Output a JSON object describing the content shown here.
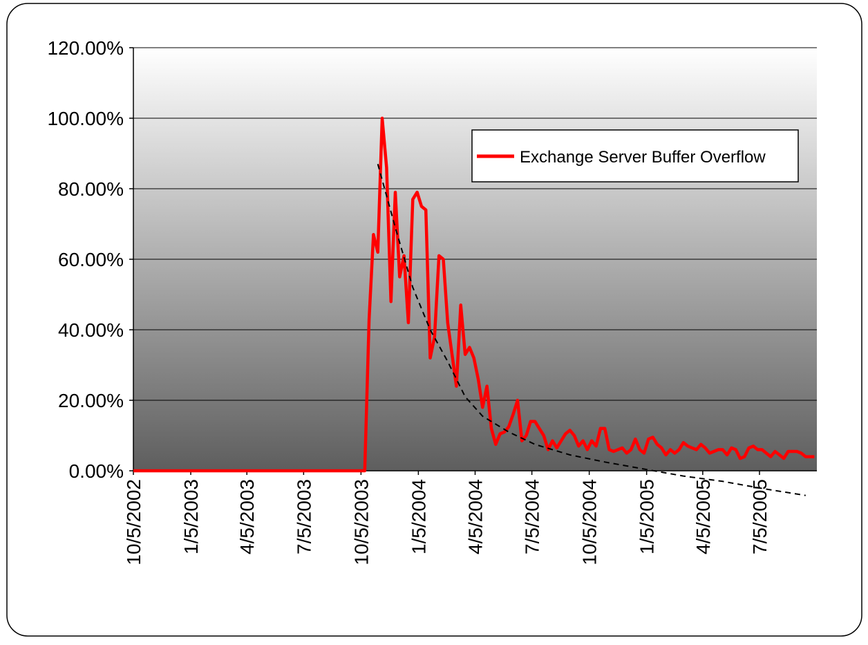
{
  "chart_data": {
    "type": "line",
    "x": [
      "2002-10-05",
      "2003-10-11",
      "2003-10-18",
      "2003-10-25",
      "2003-11-01",
      "2003-11-08",
      "2003-11-15",
      "2003-11-22",
      "2003-11-29",
      "2003-12-06",
      "2003-12-13",
      "2003-12-20",
      "2003-12-27",
      "2004-01-03",
      "2004-01-10",
      "2004-01-17",
      "2004-01-24",
      "2004-01-31",
      "2004-02-07",
      "2004-02-14",
      "2004-02-21",
      "2004-02-28",
      "2004-03-06",
      "2004-03-13",
      "2004-03-20",
      "2004-03-27",
      "2004-04-03",
      "2004-04-10",
      "2004-04-17",
      "2004-04-24",
      "2004-05-01",
      "2004-05-08",
      "2004-05-15",
      "2004-05-22",
      "2004-05-29",
      "2004-06-05",
      "2004-06-12",
      "2004-06-19",
      "2004-06-26",
      "2004-07-03",
      "2004-07-10",
      "2004-07-17",
      "2004-07-24",
      "2004-07-31",
      "2004-08-07",
      "2004-08-14",
      "2004-08-21",
      "2004-08-28",
      "2004-09-04",
      "2004-09-11",
      "2004-09-18",
      "2004-09-25",
      "2004-10-02",
      "2004-10-09",
      "2004-10-16",
      "2004-10-23",
      "2004-10-30",
      "2004-11-06",
      "2004-11-13",
      "2004-11-20",
      "2004-11-27",
      "2004-12-04",
      "2004-12-11",
      "2004-12-18",
      "2004-12-25",
      "2005-01-01",
      "2005-01-08",
      "2005-01-15",
      "2005-01-22",
      "2005-01-29",
      "2005-02-05",
      "2005-02-12",
      "2005-02-19",
      "2005-02-26",
      "2005-03-05",
      "2005-03-12",
      "2005-03-19",
      "2005-03-26",
      "2005-04-02",
      "2005-04-09",
      "2005-04-16",
      "2005-04-23",
      "2005-04-30",
      "2005-05-07",
      "2005-05-14",
      "2005-05-21",
      "2005-05-28",
      "2005-06-04",
      "2005-06-11",
      "2005-06-18",
      "2005-06-25",
      "2005-07-02",
      "2005-07-09",
      "2005-07-16",
      "2005-07-23",
      "2005-07-30",
      "2005-08-06",
      "2005-08-13",
      "2005-08-20",
      "2005-08-27",
      "2005-09-03",
      "2005-09-10",
      "2005-09-17",
      "2005-09-24",
      "2005-10-01"
    ],
    "series": [
      {
        "name": "Exchange Server Buffer Overflow",
        "color": "#ff0000",
        "values": [
          0,
          0,
          43,
          67,
          62,
          100,
          86,
          48,
          79,
          55,
          61,
          42,
          77,
          79,
          75,
          74,
          32,
          38,
          61,
          60,
          42,
          33,
          24,
          47,
          33,
          35,
          32,
          26,
          18,
          24,
          12,
          7.5,
          10.5,
          11,
          12.5,
          16,
          20,
          8.5,
          10,
          14,
          14,
          12,
          10,
          6,
          8.5,
          6.5,
          8.5,
          10.5,
          11.5,
          10,
          7,
          8.5,
          6,
          8.5,
          7,
          12,
          12,
          6,
          5.5,
          6,
          6.5,
          5,
          6,
          9,
          6,
          5,
          9,
          9.5,
          7.5,
          6.5,
          4.5,
          6,
          5,
          6,
          8,
          7,
          6.5,
          6,
          7.5,
          6.5,
          5,
          5.5,
          6,
          6,
          4.5,
          6.5,
          6,
          3.5,
          4,
          6.5,
          7,
          6,
          6,
          5,
          4,
          5.5,
          4.5,
          3.5,
          5.5,
          5.5,
          5.5,
          5,
          4,
          4,
          4
        ]
      }
    ],
    "trendline": {
      "color": "#000000",
      "x": [
        "2003-11-01",
        "2003-11-29",
        "2003-12-27",
        "2004-01-24",
        "2004-02-21",
        "2004-03-20",
        "2004-04-17",
        "2004-05-29",
        "2004-07-10",
        "2004-09-04",
        "2004-10-30",
        "2005-01-01",
        "2005-03-05",
        "2005-05-07",
        "2005-07-09",
        "2005-09-17"
      ],
      "values": [
        87,
        69,
        52,
        40,
        31,
        21,
        15.5,
        11,
        7.5,
        4.5,
        2.5,
        0.5,
        -1.5,
        -3,
        -5,
        -7
      ]
    },
    "xlim": [
      "2002-10-05",
      "2005-10-05"
    ],
    "xticks": [
      {
        "value": "2002-10-05",
        "label": "10/5/2002"
      },
      {
        "value": "2003-01-05",
        "label": "1/5/2003"
      },
      {
        "value": "2003-04-05",
        "label": "4/5/2003"
      },
      {
        "value": "2003-07-05",
        "label": "7/5/2003"
      },
      {
        "value": "2003-10-05",
        "label": "10/5/2003"
      },
      {
        "value": "2004-01-05",
        "label": "1/5/2004"
      },
      {
        "value": "2004-04-05",
        "label": "4/5/2004"
      },
      {
        "value": "2004-07-05",
        "label": "7/5/2004"
      },
      {
        "value": "2004-10-05",
        "label": "10/5/2004"
      },
      {
        "value": "2005-01-05",
        "label": "1/5/2005"
      },
      {
        "value": "2005-04-05",
        "label": "4/5/2005"
      },
      {
        "value": "2005-07-05",
        "label": "7/5/2005"
      }
    ],
    "ylim": [
      0,
      120
    ],
    "yticks": [
      {
        "value": 0,
        "label": "0.00%"
      },
      {
        "value": 20,
        "label": "20.00%"
      },
      {
        "value": 40,
        "label": "40.00%"
      },
      {
        "value": 60,
        "label": "60.00%"
      },
      {
        "value": 80,
        "label": "80.00%"
      },
      {
        "value": 100,
        "label": "100.00%"
      },
      {
        "value": 120,
        "label": "120.00%"
      }
    ],
    "grid": true,
    "legend": "upper right"
  }
}
